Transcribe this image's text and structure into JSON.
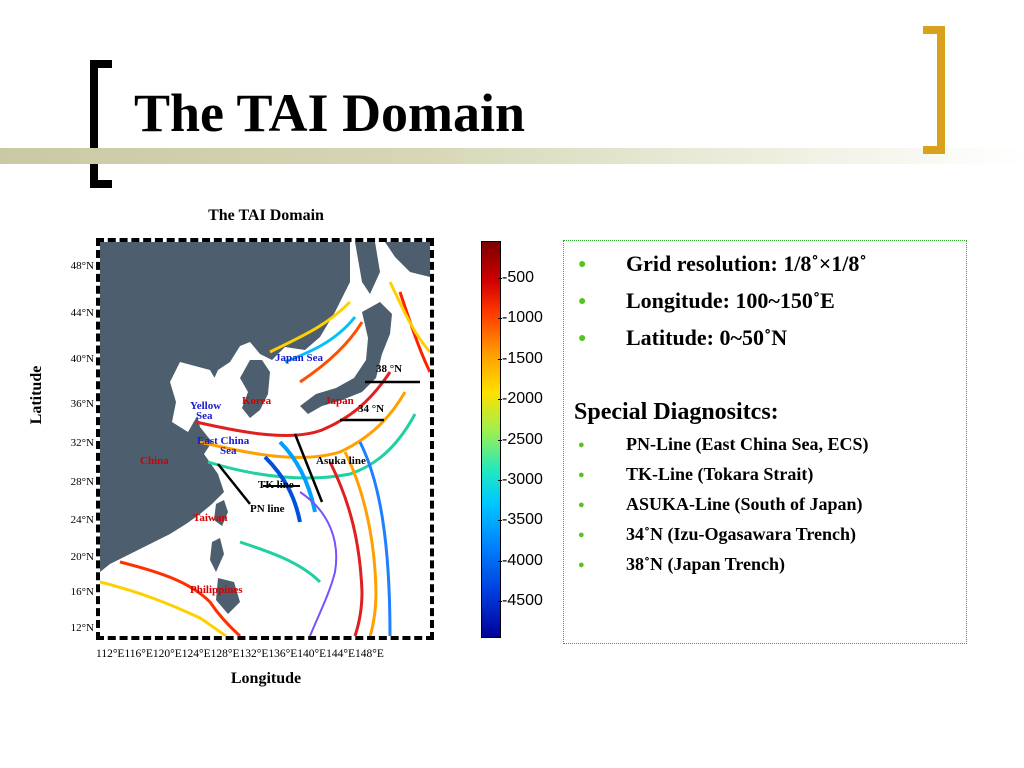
{
  "slide": {
    "title": "The TAI Domain"
  },
  "figure": {
    "title": "The TAI Domain",
    "ylabel": "Latitude",
    "xlabel": "Longitude",
    "yticks": [
      "48°N",
      "44°N",
      "40°N",
      "36°N",
      "32°N",
      "28°N",
      "24°N",
      "20°N",
      "16°N",
      "12°N"
    ],
    "xticks": "112°E116°E120°E124°E128°E132°E136°E140°E144°E148°E",
    "map_labels": {
      "japan_sea": "Japan Sea",
      "korea": "Korea",
      "japan": "Japan",
      "yellow": "Yellow",
      "yellow_sea": "Sea",
      "east_china": "East China",
      "east_china_sea": "Sea",
      "china": "China",
      "asuka_line": "Asuka line",
      "tk_line": "TK line",
      "pn_line": "PN line",
      "taiwan": "Taiwan",
      "philippines": "Philippines",
      "lat_38": "38 °N",
      "lat_34": "34 °N"
    },
    "colorbar": {
      "ticks": [
        "-500",
        "-1000",
        "-1500",
        "-2000",
        "-2500",
        "-3000",
        "-3500",
        "-4000",
        "-4500"
      ]
    }
  },
  "panel": {
    "main_bullets": [
      "Grid resolution: 1/8˚×1/8˚",
      "Longitude: 100~150˚E",
      "Latitude: 0~50˚N"
    ],
    "special_heading": "Special Diagnositcs:",
    "special_bullets": [
      "PN-Line (East China Sea, ECS)",
      "TK-Line (Tokara Strait)",
      "ASUKA-Line (South of Japan)",
      "34˚N (Izu-Ogasawara Trench)",
      "38˚N (Japan Trench)"
    ],
    "bullet_color": "#5ac21f"
  },
  "colors": {
    "left_bracket": "#000000",
    "right_bracket": "#d9a21b",
    "land": "#4d5e6e",
    "ocean": "#ffffff",
    "panel_border": "#29a829"
  }
}
